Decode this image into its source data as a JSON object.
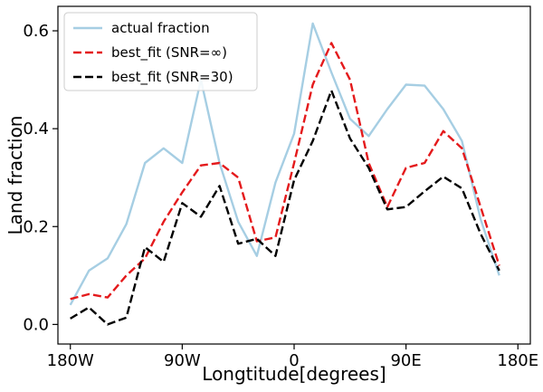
{
  "chart_data": {
    "type": "line",
    "xlabel": "Longtitude[degrees]",
    "ylabel": "Land fraction",
    "xlim": [
      -190,
      190
    ],
    "ylim": [
      -0.04,
      0.65
    ],
    "xticks": [
      {
        "value": -180,
        "label": "180W"
      },
      {
        "value": -90,
        "label": "90W"
      },
      {
        "value": 0,
        "label": "0"
      },
      {
        "value": 90,
        "label": "90E"
      },
      {
        "value": 180,
        "label": "180E"
      }
    ],
    "yticks": [
      {
        "value": 0.0,
        "label": "0.0"
      },
      {
        "value": 0.2,
        "label": "0.2"
      },
      {
        "value": 0.4,
        "label": "0.4"
      },
      {
        "value": 0.6,
        "label": "0.6"
      }
    ],
    "x": [
      -180,
      -165,
      -150,
      -135,
      -120,
      -105,
      -90,
      -75,
      -60,
      -45,
      -30,
      -15,
      0,
      15,
      30,
      45,
      60,
      75,
      90,
      105,
      120,
      135,
      150,
      165,
      180
    ],
    "series": [
      {
        "name": "actual fraction",
        "color": "#a6cee3",
        "dash": "solid",
        "values": [
          0.04,
          0.11,
          0.135,
          0.205,
          0.33,
          0.36,
          0.33,
          0.5,
          0.33,
          0.21,
          0.14,
          0.29,
          0.39,
          0.615,
          0.515,
          0.42,
          0.385,
          0.44,
          0.49,
          0.488,
          0.44,
          0.375,
          0.215,
          0.1,
          null
        ]
      },
      {
        "name": "best_fit (SNR=∞)",
        "color": "#e41a1c",
        "dash": "dashed",
        "values": [
          0.052,
          0.062,
          0.055,
          0.1,
          0.135,
          0.21,
          0.27,
          0.325,
          0.33,
          0.3,
          0.17,
          0.178,
          0.33,
          0.49,
          0.575,
          0.5,
          0.33,
          0.24,
          0.32,
          0.33,
          0.395,
          0.36,
          0.24,
          0.12,
          null
        ]
      },
      {
        "name": "best_fit (SNR=30)",
        "color": "#000000",
        "dash": "dashed",
        "values": [
          0.012,
          0.035,
          0.0,
          0.014,
          0.158,
          0.128,
          0.248,
          0.22,
          0.283,
          0.165,
          0.175,
          0.14,
          0.295,
          0.375,
          0.478,
          0.38,
          0.32,
          0.235,
          0.24,
          0.272,
          0.302,
          0.278,
          0.185,
          0.11,
          null
        ]
      }
    ],
    "legend_position": "top-left",
    "grid": false
  }
}
